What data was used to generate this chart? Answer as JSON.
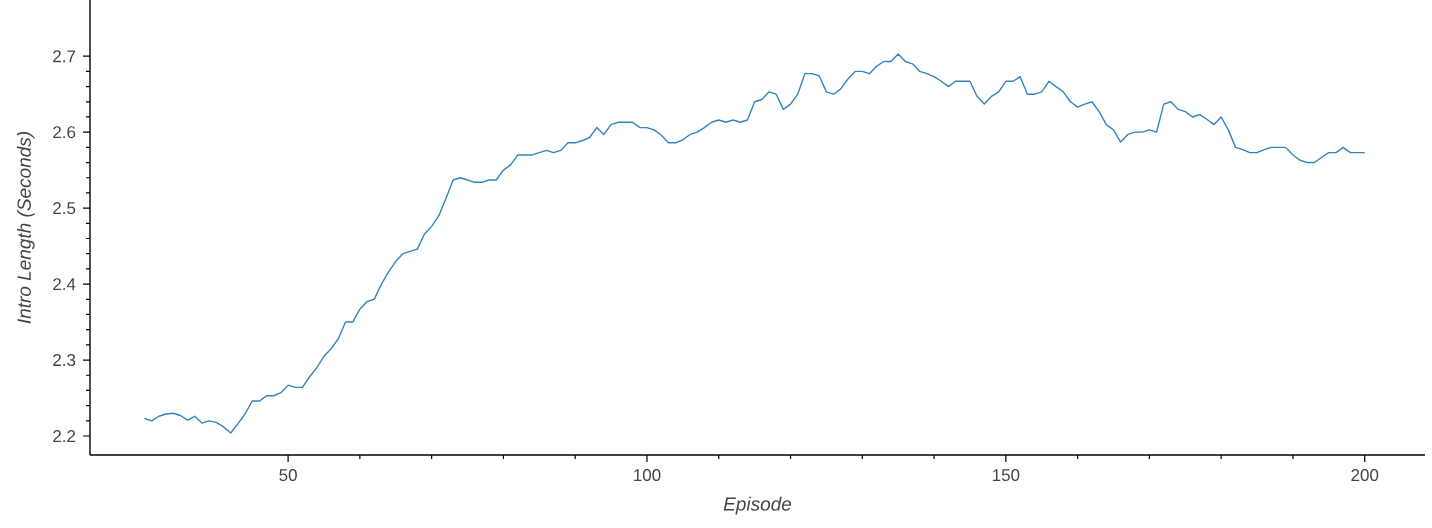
{
  "chart_data": {
    "type": "line",
    "xlabel": "Episode",
    "ylabel": "Intro Length (Seconds)",
    "x": [
      30,
      31,
      32,
      33,
      34,
      35,
      36,
      37,
      38,
      39,
      40,
      41,
      42,
      43,
      44,
      45,
      46,
      47,
      48,
      49,
      50,
      51,
      52,
      53,
      54,
      55,
      56,
      57,
      58,
      59,
      60,
      61,
      62,
      63,
      64,
      65,
      66,
      67,
      68,
      69,
      70,
      71,
      72,
      73,
      74,
      75,
      76,
      77,
      78,
      79,
      80,
      81,
      82,
      83,
      84,
      85,
      86,
      87,
      88,
      89,
      90,
      91,
      92,
      93,
      94,
      95,
      96,
      97,
      98,
      99,
      100,
      101,
      102,
      103,
      104,
      105,
      106,
      107,
      108,
      109,
      110,
      111,
      112,
      113,
      114,
      115,
      116,
      117,
      118,
      119,
      120,
      121,
      122,
      123,
      124,
      125,
      126,
      127,
      128,
      129,
      130,
      131,
      132,
      133,
      134,
      135,
      136,
      137,
      138,
      139,
      140,
      141,
      142,
      143,
      144,
      145,
      146,
      147,
      148,
      149,
      150,
      151,
      152,
      153,
      154,
      155,
      156,
      157,
      158,
      159,
      160,
      161,
      162,
      163,
      164,
      165,
      166,
      167,
      168,
      169,
      170,
      171,
      172,
      173,
      174,
      175,
      176,
      177,
      178,
      179,
      180,
      181,
      182,
      183,
      184,
      185,
      186,
      187,
      188,
      189,
      190,
      191,
      192,
      193,
      194,
      195,
      196,
      197,
      198,
      199,
      200
    ],
    "series": [
      {
        "color": "#3484bf",
        "values": [
          2.223,
          2.22,
          2.226,
          2.229,
          2.23,
          2.227,
          2.221,
          2.226,
          2.217,
          2.22,
          2.218,
          2.212,
          2.204,
          2.216,
          2.229,
          2.246,
          2.246,
          2.253,
          2.253,
          2.257,
          2.267,
          2.264,
          2.264,
          2.278,
          2.29,
          2.305,
          2.315,
          2.328,
          2.35,
          2.35,
          2.367,
          2.377,
          2.38,
          2.4,
          2.416,
          2.43,
          2.44,
          2.443,
          2.446,
          2.466,
          2.476,
          2.49,
          2.513,
          2.537,
          2.54,
          2.537,
          2.534,
          2.534,
          2.537,
          2.537,
          2.55,
          2.557,
          2.57,
          2.57,
          2.57,
          2.573,
          2.576,
          2.573,
          2.576,
          2.586,
          2.586,
          2.589,
          2.593,
          2.606,
          2.597,
          2.61,
          2.613,
          2.613,
          2.613,
          2.606,
          2.606,
          2.603,
          2.596,
          2.586,
          2.586,
          2.59,
          2.597,
          2.6,
          2.606,
          2.613,
          2.616,
          2.613,
          2.616,
          2.613,
          2.616,
          2.64,
          2.643,
          2.653,
          2.65,
          2.63,
          2.637,
          2.65,
          2.677,
          2.677,
          2.674,
          2.653,
          2.65,
          2.657,
          2.67,
          2.68,
          2.68,
          2.677,
          2.687,
          2.693,
          2.693,
          2.703,
          2.693,
          2.69,
          2.68,
          2.677,
          2.673,
          2.667,
          2.66,
          2.667,
          2.667,
          2.667,
          2.647,
          2.637,
          2.647,
          2.653,
          2.667,
          2.667,
          2.673,
          2.65,
          2.65,
          2.653,
          2.667,
          2.66,
          2.653,
          2.64,
          2.633,
          2.637,
          2.64,
          2.627,
          2.61,
          2.603,
          2.587,
          2.597,
          2.6,
          2.6,
          2.603,
          2.6,
          2.637,
          2.64,
          2.63,
          2.627,
          2.62,
          2.623,
          2.617,
          2.61,
          2.62,
          2.603,
          2.58,
          2.577,
          2.573,
          2.573,
          2.577,
          2.58,
          2.58,
          2.58,
          2.57,
          2.563,
          2.56,
          2.56,
          2.567,
          2.573,
          2.573,
          2.58,
          2.573,
          2.573,
          2.573
        ]
      }
    ],
    "xlim": [
      22.4,
      208.4
    ],
    "ylim": [
      2.175,
      2.774
    ],
    "xticks": [
      50,
      100,
      150,
      200
    ],
    "yticks": [
      2.2,
      2.3,
      2.4,
      2.5,
      2.6,
      2.7
    ]
  }
}
